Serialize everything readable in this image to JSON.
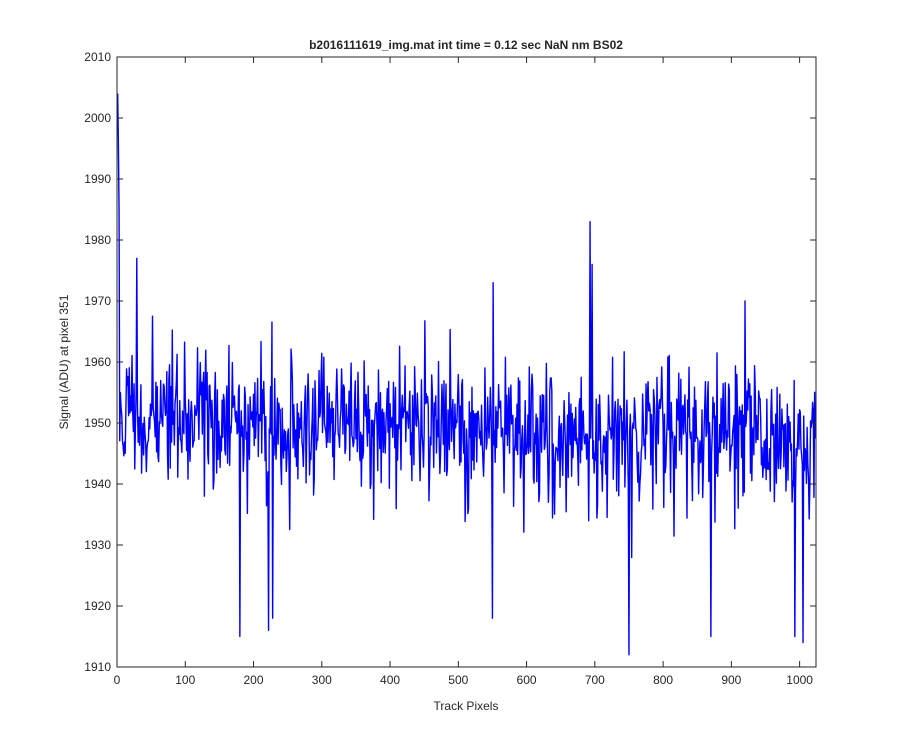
{
  "chart_data": {
    "type": "line",
    "title": "b2016111619_img.mat int time = 0.12 sec  NaN nm BS02",
    "xlabel": "Track Pixels",
    "ylabel": "Signal (ADU) at pixel 351",
    "xlim": [
      0,
      1024
    ],
    "ylim": [
      1910,
      2010
    ],
    "x_ticks": [
      0,
      100,
      200,
      300,
      400,
      500,
      600,
      700,
      800,
      900,
      1000
    ],
    "y_ticks": [
      1910,
      1920,
      1930,
      1940,
      1950,
      1960,
      1970,
      1980,
      1990,
      2000,
      2010
    ],
    "grid": false,
    "line_color": "#0000ff",
    "series": [
      {
        "x_start": 1,
        "x_step": 1,
        "n_points": 1024,
        "baseline": 1951,
        "baseline_end": 1947,
        "noise_amplitude": 8,
        "notable_points": [
          {
            "x": 1,
            "y": 2004
          },
          {
            "x": 2,
            "y": 1996
          },
          {
            "x": 3,
            "y": 1985
          },
          {
            "x": 29,
            "y": 1977
          },
          {
            "x": 180,
            "y": 1915
          },
          {
            "x": 222,
            "y": 1916
          },
          {
            "x": 228,
            "y": 1918
          },
          {
            "x": 550,
            "y": 1918
          },
          {
            "x": 551,
            "y": 1973
          },
          {
            "x": 693,
            "y": 1983
          },
          {
            "x": 696,
            "y": 1976
          },
          {
            "x": 750,
            "y": 1912
          },
          {
            "x": 870,
            "y": 1915
          },
          {
            "x": 920,
            "y": 1970
          },
          {
            "x": 993,
            "y": 1915
          },
          {
            "x": 1005,
            "y": 1914
          }
        ]
      }
    ]
  }
}
